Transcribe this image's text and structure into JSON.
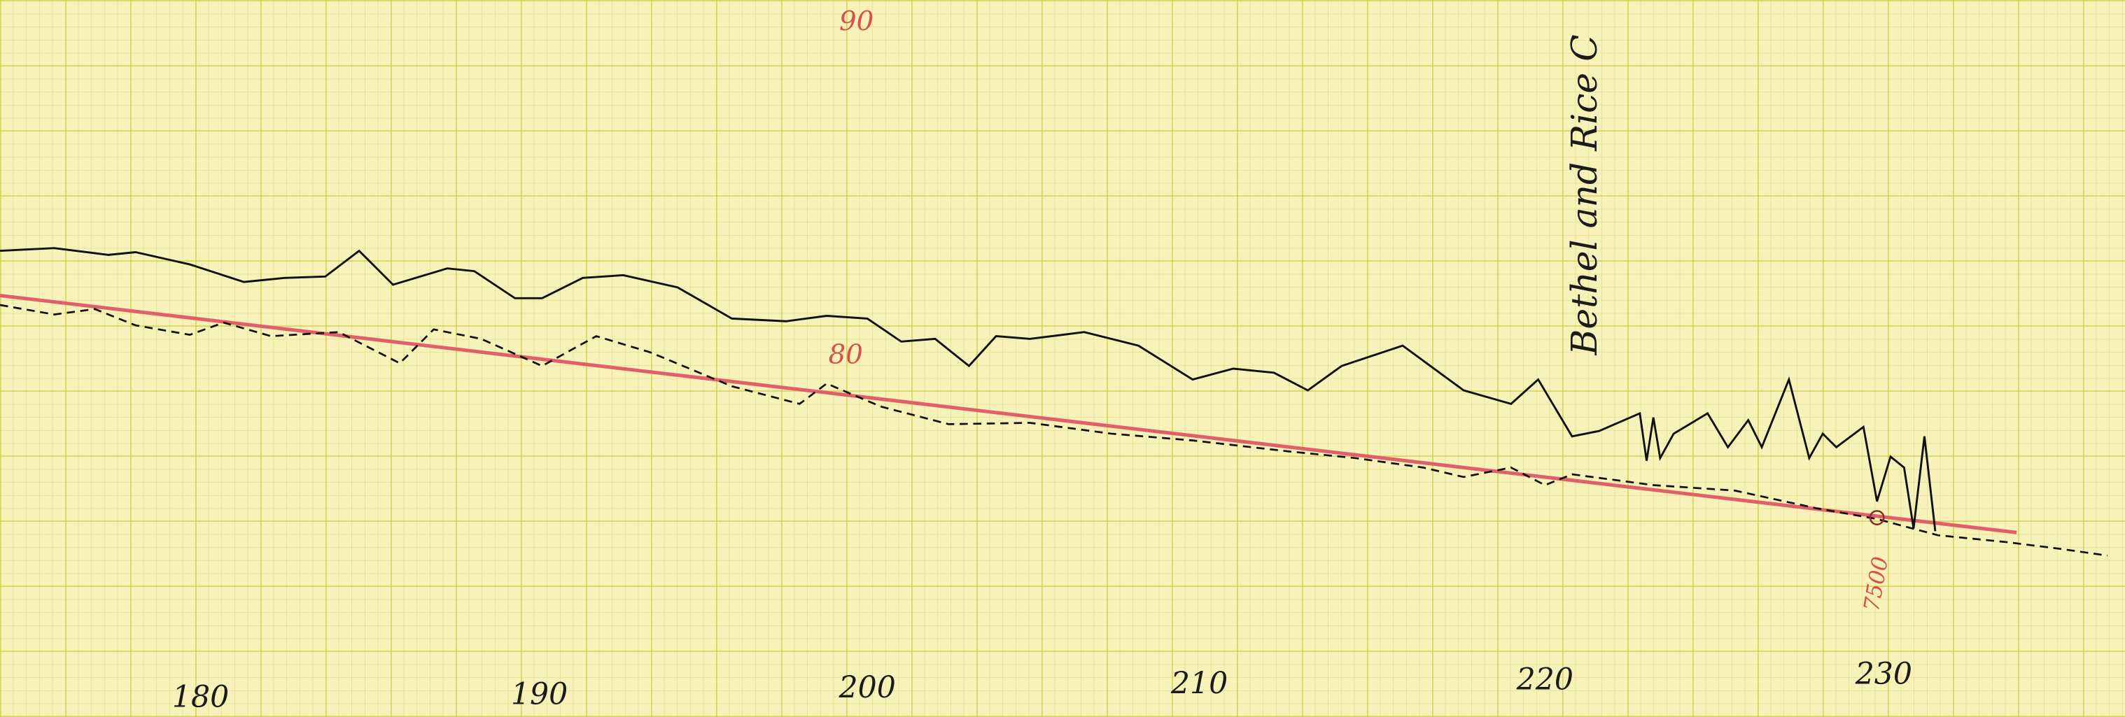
{
  "annotations": {
    "top_elevation": "90",
    "mid_elevation": "80",
    "place_name": "Bethel and Rice C",
    "station_note": "7500"
  },
  "station_labels": [
    "180",
    "190",
    "200",
    "210",
    "220",
    "230"
  ]
}
